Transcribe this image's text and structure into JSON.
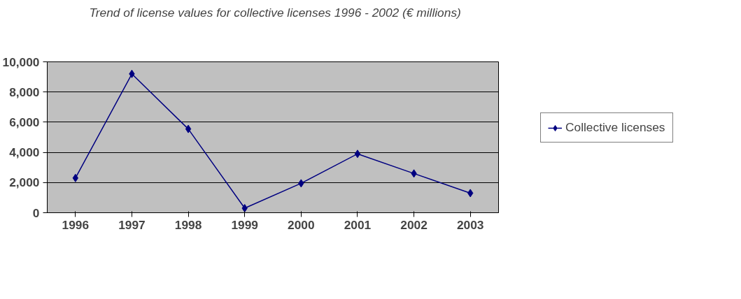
{
  "chart_data": {
    "type": "line",
    "title": "Trend of license values for collective licenses 1996 - 2002 (€ millions)",
    "categories": [
      "1996",
      "1997",
      "1998",
      "1999",
      "2000",
      "2001",
      "2002",
      "2003"
    ],
    "series": [
      {
        "name": "Collective licenses",
        "color": "#000080",
        "values": [
          2300,
          9200,
          5550,
          300,
          1950,
          3900,
          2600,
          1300
        ]
      }
    ],
    "ylim": [
      0,
      10000
    ],
    "yticks": [
      {
        "value": 0,
        "label": "0"
      },
      {
        "value": 2000,
        "label": "2,000"
      },
      {
        "value": 4000,
        "label": "4,000"
      },
      {
        "value": 6000,
        "label": "6,000"
      },
      {
        "value": 8000,
        "label": "8,000"
      },
      {
        "value": 10000,
        "label": "10,000"
      }
    ],
    "grid": "y",
    "legend": "right",
    "marker": "diamond",
    "line_style": "solid"
  }
}
